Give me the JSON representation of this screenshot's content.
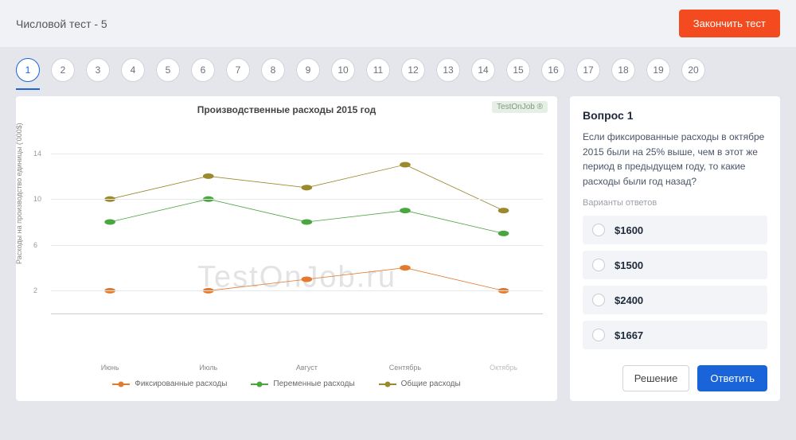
{
  "header": {
    "title": "Числовой тест - 5",
    "finish_label": "Закончить тест"
  },
  "pager": {
    "active": 1,
    "pages": [
      1,
      2,
      3,
      4,
      5,
      6,
      7,
      8,
      9,
      10,
      11,
      12,
      13,
      14,
      15,
      16,
      17,
      18,
      19,
      20
    ]
  },
  "chart": {
    "type": "line",
    "title": "Производственные расходы 2015 год",
    "ylabel": "Расходы на производство единицы ('000$)",
    "watermark_small": "TestOnJob ®",
    "watermark_big": "TestOnJob.ru",
    "x_labels": [
      "Июнь",
      "Июль",
      "Август",
      "Сентябрь",
      "Октябрь"
    ],
    "x_positions_pct": [
      12,
      32,
      52,
      72,
      92
    ],
    "ylim": [
      0,
      16
    ],
    "yticks": [
      2,
      6,
      10,
      14
    ],
    "grid_color": "#e8e8e8",
    "background_color": "#ffffff",
    "series": [
      {
        "name": "Фиксированные расходы",
        "color": "#e47a2e",
        "values": [
          2,
          2,
          3,
          4,
          2
        ]
      },
      {
        "name": "Переменные расходы",
        "color": "#4aa63f",
        "values": [
          8,
          10,
          8,
          9,
          7
        ]
      },
      {
        "name": "Общие расходы",
        "color": "#9a8a2d",
        "values": [
          10,
          12,
          11,
          13,
          9
        ]
      }
    ],
    "line_width": 2.5,
    "marker_radius": 4
  },
  "question": {
    "title": "Вопрос 1",
    "text": "Если фиксированные расходы в октябре 2015 были на 25% выше, чем в этот же период в предыдущем году, то какие расходы были год назад?",
    "variants_label": "Варианты ответов",
    "options": [
      "$1600",
      "$1500",
      "$2400",
      "$1667"
    ],
    "solution_label": "Решение",
    "answer_label": "Ответить"
  }
}
